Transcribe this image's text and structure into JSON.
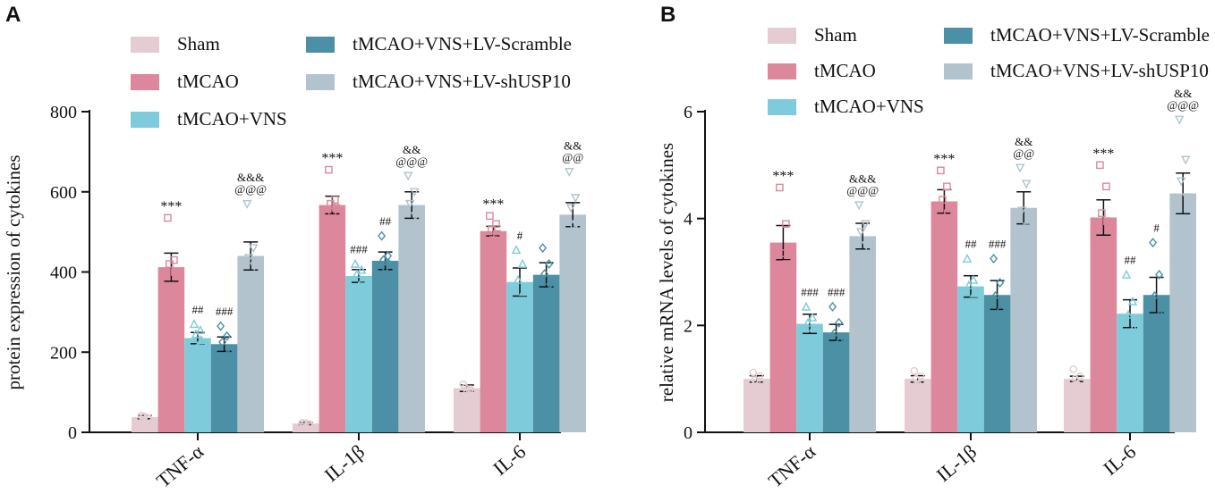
{
  "colors": {
    "Sham": "#e4ccd2",
    "tMCAO": "#dc879b",
    "tMCAO+VNS": "#7ecbdb",
    "tMCAO+VNS+LV-Scramble": "#4b90a4",
    "tMCAO+VNS+LV-shUSP10": "#b2c3cd"
  },
  "chart_data": [
    {
      "panel": "A",
      "type": "bar",
      "title": "",
      "ylabel": "protein expression of cytokines",
      "xlabel": "",
      "ylim": [
        0,
        800
      ],
      "yticks": [
        0,
        200,
        400,
        600,
        800
      ],
      "categories": [
        "TNF-α",
        "IL-1β",
        "IL-6"
      ],
      "legend": [
        {
          "name": "Sham"
        },
        {
          "name": "tMCAO+VNS+LV-Scramble"
        },
        {
          "name": "tMCAO"
        },
        {
          "name": "tMCAO+VNS+LV-shUSP10"
        },
        {
          "name": "tMCAO+VNS"
        }
      ],
      "series": [
        {
          "name": "Sham",
          "values": [
            38,
            22,
            110
          ],
          "errors": [
            4,
            3,
            8
          ],
          "marker": "circle",
          "points": [
            [
              42,
              35,
              38,
              36,
              40
            ],
            [
              24,
              20,
              22,
              21,
              23
            ],
            [
              120,
              105,
              112,
              108,
              105
            ]
          ],
          "sig": [
            "",
            "",
            ""
          ]
        },
        {
          "name": "tMCAO",
          "values": [
            412,
            567,
            502
          ],
          "errors": [
            35,
            22,
            12
          ],
          "marker": "square",
          "points": [
            [
              535,
              430,
              420,
              400,
              315
            ],
            [
              655,
              580,
              570,
              560,
              550
            ],
            [
              540,
              520,
              505,
              495,
              480
            ]
          ],
          "sig": [
            "***",
            "***",
            "***"
          ]
        },
        {
          "name": "tMCAO+VNS",
          "values": [
            235,
            390,
            375
          ],
          "errors": [
            14,
            16,
            35
          ],
          "marker": "triangle",
          "points": [
            [
              270,
              255,
              245,
              230,
              215
            ],
            [
              420,
              405,
              395,
              380,
              365
            ],
            [
              455,
              420,
              380,
              350,
              260
            ]
          ],
          "sig": [
            "##",
            "###",
            "#"
          ]
        },
        {
          "name": "tMCAO+VNS+LV-Scramble",
          "values": [
            220,
            428,
            393
          ],
          "errors": [
            18,
            22,
            30
          ],
          "marker": "diamond",
          "points": [
            [
              265,
              240,
              225,
              195,
              170
            ],
            [
              490,
              440,
              430,
              420,
              410
            ],
            [
              460,
              420,
              395,
              370,
              300
            ]
          ],
          "sig": [
            "###",
            "##",
            ""
          ]
        },
        {
          "name": "tMCAO+VNS+LV-shUSP10",
          "values": [
            440,
            567,
            543
          ],
          "errors": [
            35,
            33,
            30
          ],
          "marker": "triangle-down",
          "points": [
            [
              570,
              460,
              435,
              415,
              320
            ],
            [
              640,
              600,
              570,
              540,
              440
            ],
            [
              650,
              585,
              560,
              520,
              515
            ]
          ],
          "sig": [
            "&&&\n@@@",
            "&&\n@@@",
            "&&\n@@"
          ]
        }
      ]
    },
    {
      "panel": "B",
      "type": "bar",
      "title": "",
      "ylabel": "relative  mRNA levels  of cytokines",
      "xlabel": "",
      "ylim": [
        0,
        6
      ],
      "yticks": [
        0,
        2,
        4,
        6
      ],
      "categories": [
        "TNF-α",
        "IL-1β",
        "IL-6"
      ],
      "legend": [
        {
          "name": "Sham"
        },
        {
          "name": "tMCAO+VNS+LV-Scramble"
        },
        {
          "name": "tMCAO"
        },
        {
          "name": "tMCAO+VNS+LV-shUSP10"
        },
        {
          "name": "tMCAO+VNS"
        }
      ],
      "series": [
        {
          "name": "Sham",
          "values": [
            1.0,
            1.0,
            1.0
          ],
          "errors": [
            0.06,
            0.06,
            0.05
          ],
          "marker": "circle",
          "points": [
            [
              1.12,
              1.05,
              0.98,
              0.95,
              0.93
            ],
            [
              1.15,
              1.05,
              1.0,
              0.95,
              0.9
            ],
            [
              1.18,
              1.05,
              1.0,
              0.95,
              0.9
            ]
          ],
          "sig": [
            "",
            "",
            ""
          ]
        },
        {
          "name": "tMCAO",
          "values": [
            3.55,
            4.32,
            4.02
          ],
          "errors": [
            0.32,
            0.22,
            0.33
          ],
          "marker": "square",
          "points": [
            [
              4.58,
              3.9,
              3.35,
              3.15,
              2.95
            ],
            [
              4.9,
              4.6,
              4.35,
              4.1,
              3.65
            ],
            [
              5.0,
              4.6,
              4.1,
              3.95,
              2.95
            ]
          ],
          "sig": [
            "***",
            "***",
            "***"
          ]
        },
        {
          "name": "tMCAO+VNS",
          "values": [
            2.03,
            2.73,
            2.22
          ],
          "errors": [
            0.18,
            0.2,
            0.26
          ],
          "marker": "triangle",
          "points": [
            [
              2.35,
              2.15,
              2.05,
              1.95,
              1.45
            ],
            [
              3.25,
              2.85,
              2.75,
              2.6,
              2.05
            ],
            [
              2.95,
              2.45,
              2.2,
              1.95,
              1.65
            ]
          ],
          "sig": [
            "###",
            "##",
            "##"
          ]
        },
        {
          "name": "tMCAO+VNS+LV-Scramble",
          "values": [
            1.87,
            2.57,
            2.57
          ],
          "errors": [
            0.15,
            0.27,
            0.33
          ],
          "marker": "diamond",
          "points": [
            [
              2.35,
              2.05,
              1.85,
              1.7,
              1.45
            ],
            [
              3.25,
              2.8,
              2.55,
              2.3,
              1.95
            ],
            [
              3.55,
              2.95,
              2.55,
              2.2,
              1.95
            ]
          ],
          "sig": [
            "###",
            "###",
            "#"
          ]
        },
        {
          "name": "tMCAO+VNS+LV-shUSP10",
          "values": [
            3.67,
            4.2,
            4.47
          ],
          "errors": [
            0.24,
            0.3,
            0.38
          ],
          "marker": "triangle-down",
          "points": [
            [
              4.25,
              3.9,
              3.75,
              3.5,
              2.75
            ],
            [
              4.95,
              4.65,
              4.15,
              3.85,
              3.15
            ],
            [
              5.85,
              5.1,
              4.7,
              4.4,
              3.45
            ]
          ],
          "sig": [
            "&&&\n@@@",
            "&&\n@@",
            "&&\n@@@"
          ]
        }
      ]
    }
  ]
}
